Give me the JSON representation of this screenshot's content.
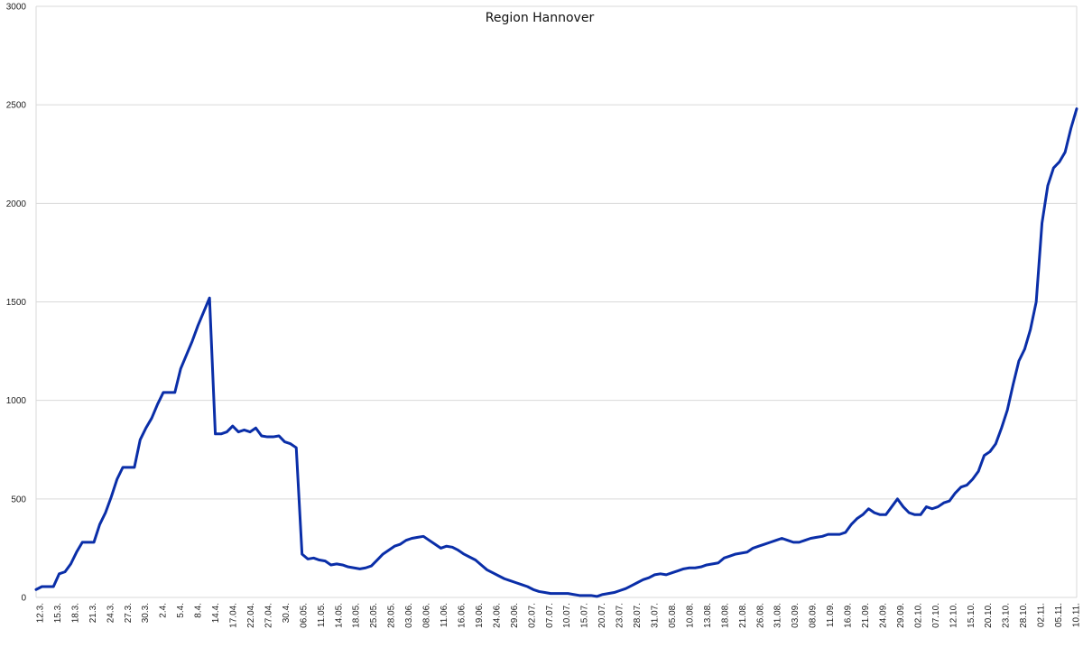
{
  "chart_data": {
    "type": "line",
    "title": "Region Hannover",
    "xlabel": "",
    "ylabel": "",
    "ylim": [
      0,
      3000
    ],
    "yticks": [
      0,
      500,
      1000,
      1500,
      2000,
      2500,
      3000
    ],
    "grid": true,
    "legend": "none",
    "colors": {
      "series": "#0a2ea8",
      "grid": "#d9d9d9",
      "text": "#222222"
    },
    "xtick_labels": [
      "12.3.",
      "15.3.",
      "18.3.",
      "21.3.",
      "24.3.",
      "27.3.",
      "30.3.",
      "2.4.",
      "5.4.",
      "8.4.",
      "14.4.",
      "17.04.",
      "22.04.",
      "27.04.",
      "30.4.",
      "06.05.",
      "11.05.",
      "14.05.",
      "18.05.",
      "25.05.",
      "28.05.",
      "03.06.",
      "08.06.",
      "11.06.",
      "16.06.",
      "19.06.",
      "24.06.",
      "29.06.",
      "02.07.",
      "07.07.",
      "10.07.",
      "15.07.",
      "20.07.",
      "23.07.",
      "28.07.",
      "31.07.",
      "05.08.",
      "10.08.",
      "13.08.",
      "18.08.",
      "21.08.",
      "26.08.",
      "31.08.",
      "03.09.",
      "08.09.",
      "11.09.",
      "16.09.",
      "21.09.",
      "24.09.",
      "29.09.",
      "02.10.",
      "07.10.",
      "12.10.",
      "15.10.",
      "20.10.",
      "23.10.",
      "28.10.",
      "02.11.",
      "05.11.",
      "10.11."
    ],
    "series": [
      {
        "values": [
          40,
          55,
          55,
          55,
          120,
          130,
          170,
          230,
          280,
          280,
          280,
          370,
          430,
          510,
          600,
          660,
          660,
          660,
          800,
          860,
          910,
          980,
          1040,
          1040,
          1040,
          1160,
          1230,
          1300,
          1380,
          1450,
          1520,
          830,
          830,
          840,
          870,
          840,
          850,
          840,
          860,
          820,
          815,
          815,
          820,
          790,
          780,
          760,
          220,
          195,
          200,
          190,
          185,
          165,
          170,
          165,
          155,
          150,
          145,
          150,
          160,
          190,
          220,
          240,
          260,
          270,
          290,
          300,
          305,
          310,
          290,
          270,
          250,
          260,
          255,
          240,
          220,
          205,
          190,
          165,
          140,
          125,
          110,
          95,
          85,
          75,
          65,
          55,
          40,
          30,
          25,
          20,
          20,
          20,
          20,
          15,
          10,
          10,
          10,
          5,
          15,
          20,
          25,
          35,
          45,
          60,
          75,
          90,
          100,
          115,
          120,
          115,
          125,
          135,
          145,
          150,
          150,
          155,
          165,
          170,
          175,
          200,
          210,
          220,
          225,
          230,
          250,
          260,
          270,
          280,
          290,
          300,
          290,
          280,
          280,
          290,
          300,
          305,
          310,
          320,
          320,
          320,
          330,
          370,
          400,
          420,
          450,
          430,
          420,
          420,
          460,
          500,
          460,
          430,
          420,
          420,
          460,
          450,
          460,
          480,
          490,
          530,
          560,
          570,
          600,
          640,
          720,
          740,
          780,
          860,
          950,
          1080,
          1200,
          1260,
          1360,
          1500,
          1900,
          2090,
          2180,
          2210,
          2260,
          2380,
          2480
        ]
      }
    ]
  }
}
